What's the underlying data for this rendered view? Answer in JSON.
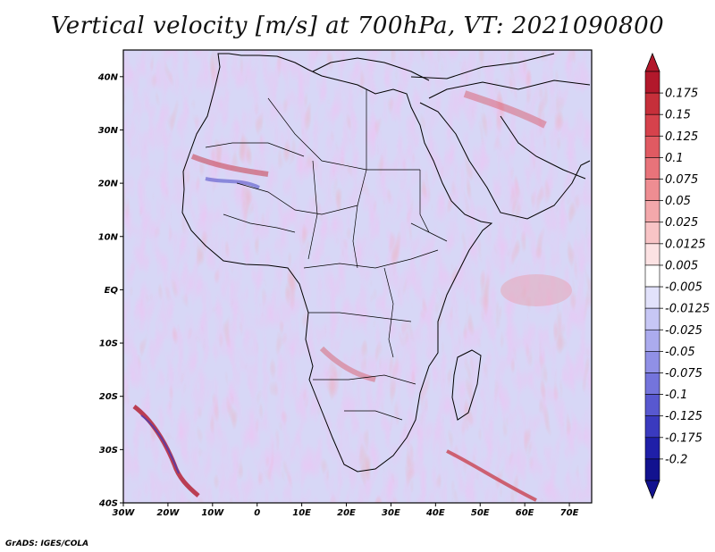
{
  "title": "Vertical velocity [m/s] at 700hPa, VT: 2021090800",
  "credit": "GrADS: IGES/COLA",
  "map": {
    "lon_range": [
      -30,
      75
    ],
    "lat_range": [
      -40,
      45
    ],
    "lat_ticks": [
      {
        "value": 40,
        "label": "40N"
      },
      {
        "value": 30,
        "label": "30N"
      },
      {
        "value": 20,
        "label": "20N"
      },
      {
        "value": 10,
        "label": "10N"
      },
      {
        "value": 0,
        "label": "EQ"
      },
      {
        "value": -10,
        "label": "10S"
      },
      {
        "value": -20,
        "label": "20S"
      },
      {
        "value": -30,
        "label": "30S"
      },
      {
        "value": -40,
        "label": "40S"
      }
    ],
    "lon_ticks": [
      {
        "value": -30,
        "label": "30W"
      },
      {
        "value": -20,
        "label": "20W"
      },
      {
        "value": -10,
        "label": "10W"
      },
      {
        "value": 0,
        "label": "0"
      },
      {
        "value": 10,
        "label": "10E"
      },
      {
        "value": 20,
        "label": "20E"
      },
      {
        "value": 30,
        "label": "30E"
      },
      {
        "value": 40,
        "label": "40E"
      },
      {
        "value": 50,
        "label": "50E"
      },
      {
        "value": 60,
        "label": "60E"
      },
      {
        "value": 70,
        "label": "70E"
      }
    ]
  },
  "colorbar": {
    "levels": [
      "0.175",
      "0.15",
      "0.125",
      "0.1",
      "0.075",
      "0.05",
      "0.025",
      "0.0125",
      "0.005",
      "-0.005",
      "-0.0125",
      "-0.025",
      "-0.05",
      "-0.075",
      "-0.1",
      "-0.125",
      "-0.175",
      "-0.2"
    ],
    "colors": [
      "#b2182b",
      "#c62f3a",
      "#d6424c",
      "#e05a62",
      "#e8737a",
      "#ee8d92",
      "#f3a8ab",
      "#f8c4c6",
      "#fce2e3",
      "#ffffff",
      "#e2e2fb",
      "#c7c7f5",
      "#ababee",
      "#9090e6",
      "#7474dc",
      "#5858d0",
      "#3a3abf",
      "#1f1fa8",
      "#12128f"
    ]
  }
}
